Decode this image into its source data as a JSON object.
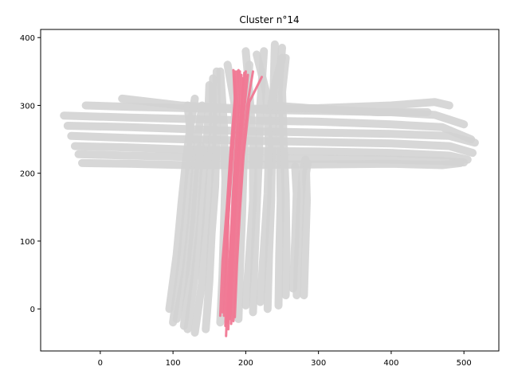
{
  "chart_data": {
    "type": "line",
    "title": "Cluster n°14",
    "xlabel": "",
    "ylabel": "",
    "xlim": [
      -82,
      548
    ],
    "ylim": [
      -62,
      412
    ],
    "xticks": [
      0,
      100,
      200,
      300,
      400,
      500
    ],
    "yticks": [
      0,
      100,
      200,
      300,
      400
    ],
    "xtick_labels": [
      "0",
      "100",
      "200",
      "300",
      "400",
      "500"
    ],
    "ytick_labels": [
      "0",
      "100",
      "200",
      "300",
      "400"
    ],
    "grid": false,
    "legend": "none",
    "series": [
      {
        "role": "background-trajectories",
        "color": "#d3d3d3",
        "lines": [
          [
            [
              -50,
              285
            ],
            [
              40,
              282
            ],
            [
              120,
              280
            ],
            [
              200,
              278
            ],
            [
              300,
              276
            ],
            [
              400,
              272
            ],
            [
              470,
              268
            ],
            [
              510,
              250
            ]
          ],
          [
            [
              -45,
              270
            ],
            [
              40,
              268
            ],
            [
              120,
              265
            ],
            [
              200,
              262
            ],
            [
              300,
              260
            ],
            [
              400,
              258
            ],
            [
              480,
              255
            ],
            [
              515,
              245
            ]
          ],
          [
            [
              -40,
              255
            ],
            [
              40,
              252
            ],
            [
              120,
              250
            ],
            [
              200,
              248
            ],
            [
              300,
              246
            ],
            [
              400,
              244
            ],
            [
              480,
              240
            ],
            [
              512,
              230
            ]
          ],
          [
            [
              -35,
              240
            ],
            [
              40,
              238
            ],
            [
              120,
              235
            ],
            [
              200,
              233
            ],
            [
              300,
              232
            ],
            [
              400,
              230
            ],
            [
              480,
              226
            ],
            [
              505,
              220
            ]
          ],
          [
            [
              -30,
              228
            ],
            [
              40,
              226
            ],
            [
              120,
              224
            ],
            [
              200,
              222
            ],
            [
              300,
              221
            ],
            [
              400,
              220
            ],
            [
              470,
              218
            ],
            [
              500,
              216
            ]
          ],
          [
            [
              -20,
              300
            ],
            [
              40,
              298
            ],
            [
              120,
              296
            ],
            [
              200,
              294
            ],
            [
              300,
              292
            ],
            [
              400,
              290
            ],
            [
              460,
              286
            ],
            [
              500,
              272
            ]
          ],
          [
            [
              -25,
              215
            ],
            [
              40,
              214
            ],
            [
              120,
              212
            ],
            [
              200,
              212
            ],
            [
              300,
              213
            ],
            [
              400,
              214
            ],
            [
              470,
              212
            ],
            [
              495,
              215
            ]
          ],
          [
            [
              30,
              310
            ],
            [
              110,
              300
            ],
            [
              200,
              295
            ],
            [
              300,
              296
            ],
            [
              400,
              300
            ],
            [
              460,
              305
            ],
            [
              480,
              300
            ]
          ],
          [
            [
              100,
              -20
            ],
            [
              110,
              60
            ],
            [
              118,
              140
            ],
            [
              122,
              200
            ],
            [
              125,
              250
            ],
            [
              120,
              300
            ]
          ],
          [
            [
              95,
              0
            ],
            [
              105,
              80
            ],
            [
              112,
              160
            ],
            [
              118,
              220
            ],
            [
              124,
              270
            ],
            [
              130,
              310
            ]
          ],
          [
            [
              105,
              -15
            ],
            [
              118,
              60
            ],
            [
              125,
              130
            ],
            [
              130,
              200
            ],
            [
              135,
              260
            ],
            [
              140,
              300
            ]
          ],
          [
            [
              120,
              -30
            ],
            [
              130,
              50
            ],
            [
              138,
              130
            ],
            [
              142,
              200
            ],
            [
              148,
              270
            ],
            [
              150,
              330
            ]
          ],
          [
            [
              130,
              -35
            ],
            [
              140,
              40
            ],
            [
              145,
              120
            ],
            [
              150,
              190
            ],
            [
              155,
              260
            ],
            [
              155,
              340
            ]
          ],
          [
            [
              145,
              -30
            ],
            [
              150,
              40
            ],
            [
              153,
              110
            ],
            [
              158,
              180
            ],
            [
              160,
              260
            ],
            [
              160,
              350
            ]
          ],
          [
            [
              165,
              -20
            ],
            [
              168,
              50
            ],
            [
              170,
              120
            ],
            [
              172,
              190
            ],
            [
              170,
              270
            ],
            [
              165,
              350
            ]
          ],
          [
            [
              190,
              -15
            ],
            [
              192,
              60
            ],
            [
              195,
              140
            ],
            [
              197,
              210
            ],
            [
              200,
              280
            ],
            [
              205,
              360
            ]
          ],
          [
            [
              210,
              -5
            ],
            [
              212,
              70
            ],
            [
              215,
              150
            ],
            [
              218,
              220
            ],
            [
              220,
              300
            ],
            [
              225,
              380
            ]
          ],
          [
            [
              230,
              0
            ],
            [
              232,
              80
            ],
            [
              235,
              160
            ],
            [
              236,
              230
            ],
            [
              238,
              310
            ],
            [
              240,
              390
            ]
          ],
          [
            [
              245,
              5
            ],
            [
              246,
              80
            ],
            [
              248,
              160
            ],
            [
              247,
              240
            ],
            [
              245,
              320
            ],
            [
              250,
              385
            ]
          ],
          [
            [
              255,
              20
            ],
            [
              256,
              90
            ],
            [
              255,
              170
            ],
            [
              252,
              250
            ],
            [
              250,
              320
            ],
            [
              255,
              370
            ]
          ],
          [
            [
              220,
              10
            ],
            [
              225,
              90
            ],
            [
              230,
              170
            ],
            [
              232,
              240
            ],
            [
              228,
              320
            ],
            [
              215,
              375
            ]
          ],
          [
            [
              270,
              20
            ],
            [
              272,
              80
            ],
            [
              275,
              150
            ],
            [
              278,
              200
            ],
            [
              282,
              220
            ]
          ],
          [
            [
              280,
              20
            ],
            [
              282,
              90
            ],
            [
              284,
              160
            ],
            [
              283,
              200
            ],
            [
              285,
              215
            ]
          ],
          [
            [
              265,
              30
            ],
            [
              268,
              100
            ],
            [
              270,
              170
            ],
            [
              268,
              210
            ]
          ],
          [
            [
              200,
              5
            ],
            [
              205,
              80
            ],
            [
              210,
              160
            ],
            [
              210,
              240
            ],
            [
              205,
              320
            ],
            [
              200,
              380
            ]
          ],
          [
            [
              180,
              -10
            ],
            [
              182,
              60
            ],
            [
              185,
              140
            ],
            [
              186,
              220
            ],
            [
              185,
              300
            ],
            [
              175,
              360
            ]
          ],
          [
            [
              115,
              -25
            ],
            [
              122,
              40
            ],
            [
              128,
              110
            ],
            [
              133,
              180
            ],
            [
              138,
              240
            ]
          ],
          [
            [
              250,
              370
            ],
            [
              240,
              330
            ],
            [
              235,
              300
            ],
            [
              300,
              295
            ],
            [
              380,
              290
            ],
            [
              450,
              290
            ]
          ]
        ]
      },
      {
        "role": "cluster-trajectories",
        "color": "#f07893",
        "lines": [
          [
            [
              172,
              -25
            ],
            [
              174,
              50
            ],
            [
              176,
              130
            ],
            [
              180,
              210
            ],
            [
              185,
              290
            ],
            [
              185,
              350
            ]
          ],
          [
            [
              175,
              -20
            ],
            [
              178,
              60
            ],
            [
              181,
              140
            ],
            [
              185,
              220
            ],
            [
              190,
              300
            ],
            [
              192,
              350
            ]
          ],
          [
            [
              178,
              -15
            ],
            [
              181,
              65
            ],
            [
              184,
              145
            ],
            [
              189,
              225
            ],
            [
              195,
              305
            ],
            [
              198,
              348
            ]
          ],
          [
            [
              180,
              -22
            ],
            [
              183,
              55
            ],
            [
              187,
              135
            ],
            [
              192,
              215
            ],
            [
              198,
              295
            ],
            [
              203,
              345
            ]
          ],
          [
            [
              170,
              -10
            ],
            [
              173,
              70
            ],
            [
              177,
              150
            ],
            [
              182,
              230
            ],
            [
              188,
              310
            ],
            [
              190,
              352
            ]
          ],
          [
            [
              183,
              -18
            ],
            [
              186,
              60
            ],
            [
              190,
              140
            ],
            [
              195,
              220
            ],
            [
              202,
              300
            ],
            [
              210,
              350
            ]
          ],
          [
            [
              168,
              -5
            ],
            [
              171,
              75
            ],
            [
              175,
              155
            ],
            [
              180,
              235
            ],
            [
              186,
              315
            ],
            [
              188,
              350
            ]
          ],
          [
            [
              176,
              -30
            ],
            [
              179,
              45
            ],
            [
              183,
              125
            ],
            [
              188,
              205
            ],
            [
              194,
              285
            ],
            [
              196,
              340
            ]
          ],
          [
            [
              185,
              -12
            ],
            [
              188,
              65
            ],
            [
              192,
              145
            ],
            [
              197,
              225
            ],
            [
              205,
              305
            ],
            [
              222,
              342
            ]
          ],
          [
            [
              173,
              -40
            ],
            [
              176,
              40
            ],
            [
              180,
              120
            ],
            [
              185,
              200
            ],
            [
              191,
              280
            ],
            [
              194,
              345
            ]
          ],
          [
            [
              165,
              -10
            ],
            [
              168,
              70
            ],
            [
              174,
              150
            ],
            [
              179,
              230
            ],
            [
              185,
              310
            ],
            [
              183,
              352
            ]
          ],
          [
            [
              179,
              -8
            ],
            [
              182,
              72
            ],
            [
              186,
              152
            ],
            [
              191,
              232
            ],
            [
              198,
              312
            ],
            [
              200,
              350
            ]
          ]
        ]
      }
    ]
  }
}
